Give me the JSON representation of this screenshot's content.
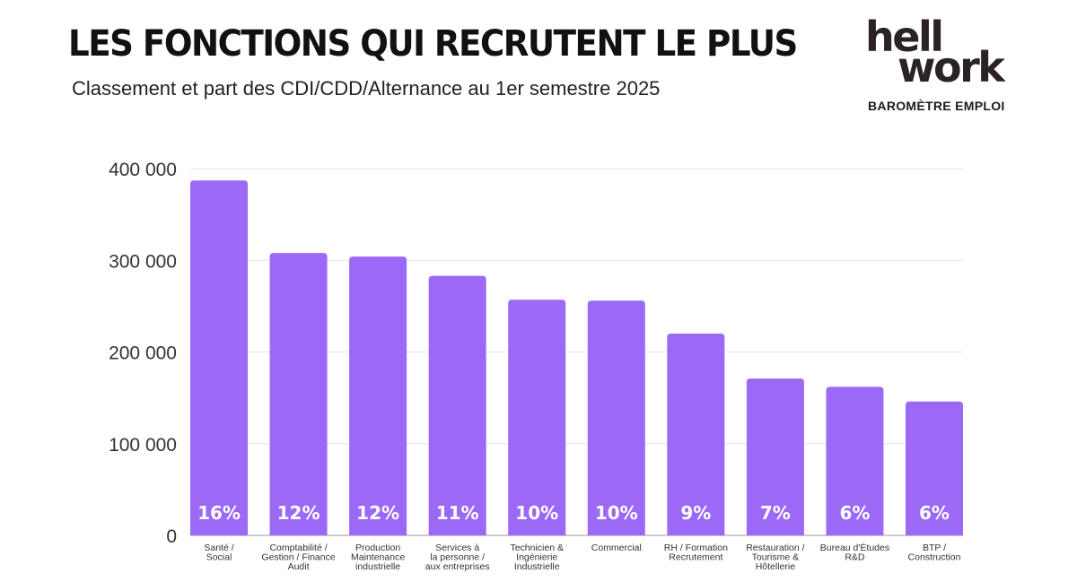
{
  "header": {
    "title": "LES FONCTIONS QUI RECRUTENT LE PLUS",
    "subtitle": "Classement et part des CDI/CDD/Alternance au 1er semestre 2025"
  },
  "logo": {
    "line1": "hell",
    "line2": "work",
    "tagline": "BAROMÈTRE EMPLOI",
    "icon": "hellowork-logo"
  },
  "colors": {
    "bar": "#9b69f5",
    "grid": "#e3e3e3",
    "axis": "#9a9a9a",
    "text": "#111111"
  },
  "chart_data": {
    "type": "bar",
    "title": "LES FONCTIONS QUI RECRUTENT LE PLUS",
    "subtitle": "Classement et part des CDI/CDD/Alternance au 1er semestre 2025",
    "xlabel": "",
    "ylabel": "",
    "ylim": [
      0,
      400000
    ],
    "yticks": [
      0,
      100000,
      200000,
      300000,
      400000
    ],
    "ytick_labels": [
      "0",
      "100 000",
      "200 000",
      "300 000",
      "400 000"
    ],
    "grid": true,
    "legend": "none",
    "categories": [
      [
        "Santé /",
        "Social"
      ],
      [
        "Comptabilité /",
        "Gestion / Finance",
        "Audit"
      ],
      [
        "Production",
        "Maintenance",
        "industrielle"
      ],
      [
        "Services à",
        "la personne /",
        "aux entreprises"
      ],
      [
        "Technicien &",
        "Ingénierie",
        "Industrielle"
      ],
      [
        "Commercial"
      ],
      [
        "RH / Formation",
        "Recrutement"
      ],
      [
        "Restauration /",
        "Tourisme &",
        "Hôtellerie"
      ],
      [
        "Bureau d'Études",
        "R&D"
      ],
      [
        "BTP /",
        "Construction"
      ]
    ],
    "values": [
      387000,
      308000,
      304000,
      283000,
      257000,
      256000,
      220000,
      171000,
      162000,
      146000
    ],
    "data_labels": [
      "16%",
      "12%",
      "12%",
      "11%",
      "10%",
      "10%",
      "9%",
      "7%",
      "6%",
      "6%"
    ]
  }
}
